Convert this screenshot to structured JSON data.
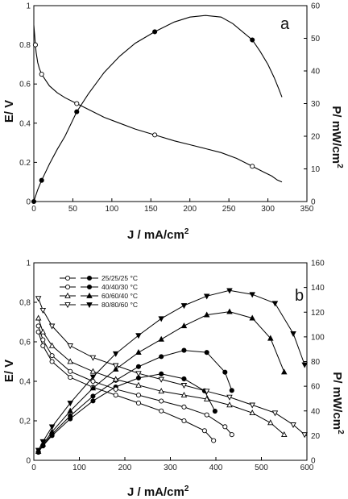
{
  "chart_data": [
    {
      "type": "line",
      "panel_label": "a",
      "xlabel": "J / mA/cm",
      "xlabel_sup": "2",
      "ylabel": "E/ V",
      "y2label": "P/ mW/cm",
      "y2label_sup": "2",
      "xlim": [
        0,
        350
      ],
      "ylim": [
        0,
        1
      ],
      "y2lim": [
        0,
        60
      ],
      "xticks": [
        "0",
        "50",
        "100",
        "150",
        "200",
        "250",
        "300",
        "350"
      ],
      "yticks": [
        "0",
        "0.2",
        "0.4",
        "0.6",
        "0.8",
        "1"
      ],
      "y2ticks": [
        "0",
        "10",
        "20",
        "30",
        "40",
        "50",
        "60"
      ],
      "series": [
        {
          "axis": "left",
          "marker": "open-circle",
          "x": [
            0,
            1,
            2,
            3,
            5,
            7,
            10,
            15,
            20,
            30,
            40,
            55,
            70,
            90,
            110,
            130,
            155,
            180,
            200,
            220,
            240,
            260,
            280,
            295,
            305,
            312,
            318
          ],
          "y": [
            0.9,
            0.85,
            0.8,
            0.76,
            0.71,
            0.68,
            0.65,
            0.62,
            0.59,
            0.555,
            0.53,
            0.5,
            0.47,
            0.43,
            0.4,
            0.37,
            0.34,
            0.31,
            0.29,
            0.27,
            0.25,
            0.22,
            0.18,
            0.15,
            0.13,
            0.11,
            0.1
          ],
          "marker_index": [
            2,
            6,
            11,
            16,
            22
          ]
        },
        {
          "axis": "right",
          "marker": "filled-circle",
          "x": [
            0,
            2,
            5,
            10,
            20,
            30,
            40,
            55,
            70,
            90,
            110,
            130,
            155,
            180,
            200,
            220,
            240,
            255,
            265,
            280,
            290,
            300,
            308,
            314,
            318
          ],
          "y": [
            0,
            1.5,
            3.6,
            6.5,
            11.5,
            16,
            20,
            27.5,
            33,
            39.5,
            44.5,
            48.5,
            52,
            55,
            56.5,
            57,
            56.5,
            54.5,
            52.5,
            49.5,
            46,
            42,
            38,
            34.5,
            32
          ],
          "marker_index": [
            0,
            3,
            7,
            12,
            19
          ]
        }
      ]
    },
    {
      "type": "line",
      "panel_label": "b",
      "xlabel": "J / mA/cm",
      "xlabel_sup": "2",
      "ylabel": "E/ V",
      "y2label": "P/ mW/cm",
      "y2label_sup": "2",
      "xlim": [
        0,
        600
      ],
      "ylim": [
        0,
        1
      ],
      "y2lim": [
        0,
        160
      ],
      "xticks": [
        "0",
        "100",
        "200",
        "300",
        "400",
        "500",
        "600"
      ],
      "yticks": [
        "0",
        "0,2",
        "0,4",
        "0,6",
        "0,8",
        "1"
      ],
      "y2ticks": [
        "0",
        "20",
        "40",
        "60",
        "80",
        "100",
        "120",
        "140",
        "160"
      ],
      "legend_position": "top-left",
      "series": [
        {
          "name": "25/25/25 °C",
          "marker": "circle",
          "voltage": {
            "x": [
              10,
              20,
              40,
              80,
              130,
              180,
              230,
              280,
              330,
              375,
              395
            ],
            "y": [
              0.65,
              0.58,
              0.5,
              0.42,
              0.37,
              0.33,
              0.29,
              0.25,
              0.2,
              0.15,
              0.1
            ]
          },
          "power": {
            "x": [
              10,
              20,
              40,
              80,
              130,
              180,
              230,
              280,
              330,
              375,
              398
            ],
            "y": [
              6.5,
              11.6,
              20,
              33.6,
              48.1,
              59.4,
              66.7,
              70,
              66,
              56.3,
              39.8
            ]
          }
        },
        {
          "name": "40/40/30 °C",
          "marker": "circle",
          "voltage": {
            "x": [
              10,
              20,
              40,
              80,
              130,
              180,
              230,
              280,
              330,
              380,
              420,
              435
            ],
            "y": [
              0.68,
              0.61,
              0.53,
              0.45,
              0.4,
              0.36,
              0.33,
              0.3,
              0.27,
              0.23,
              0.17,
              0.13
            ]
          },
          "power": {
            "x": [
              10,
              20,
              40,
              80,
              130,
              180,
              230,
              280,
              330,
              380,
              420,
              435
            ],
            "y": [
              6.8,
              12.2,
              21.2,
              36,
              52,
              64.8,
              75.9,
              84,
              89.1,
              87.4,
              71.4,
              56.6
            ]
          }
        },
        {
          "name": "60/60/40 °C",
          "marker": "triangle",
          "voltage": {
            "x": [
              10,
              20,
              40,
              80,
              130,
              180,
              230,
              280,
              330,
              380,
              430,
              480,
              520,
              550
            ],
            "y": [
              0.72,
              0.65,
              0.58,
              0.5,
              0.45,
              0.41,
              0.38,
              0.35,
              0.33,
              0.31,
              0.28,
              0.24,
              0.19,
              0.13
            ]
          },
          "power": {
            "x": [
              10,
              20,
              40,
              80,
              130,
              180,
              230,
              280,
              330,
              380,
              430,
              480,
              520,
              550
            ],
            "y": [
              7.2,
              13,
              23.2,
              40,
              58.5,
              73.8,
              87.4,
              98,
              108.9,
              117.8,
              120.4,
              115.2,
              98.8,
              71.5
            ]
          }
        },
        {
          "name": "80/80/60 °C",
          "marker": "inverted-triangle",
          "voltage": {
            "x": [
              10,
              20,
              40,
              80,
              130,
              180,
              230,
              280,
              330,
              380,
              430,
              480,
              530,
              570,
              595
            ],
            "y": [
              0.82,
              0.76,
              0.68,
              0.58,
              0.52,
              0.48,
              0.44,
              0.41,
              0.38,
              0.35,
              0.32,
              0.28,
              0.24,
              0.18,
              0.13
            ]
          },
          "power": {
            "x": [
              10,
              20,
              40,
              80,
              130,
              180,
              230,
              280,
              330,
              380,
              430,
              480,
              530,
              570,
              595
            ],
            "y": [
              8.2,
              15.2,
              27.2,
              46.4,
              67.6,
              86.4,
              101.2,
              114.8,
              125.4,
              133,
              137.6,
              134.4,
              127.2,
              102.6,
              77.4
            ]
          }
        }
      ]
    }
  ]
}
